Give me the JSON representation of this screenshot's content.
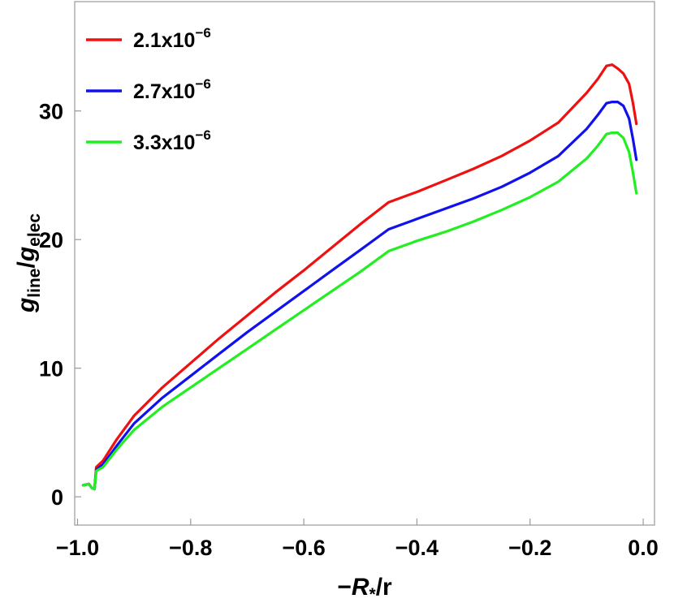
{
  "chart_data": {
    "type": "line",
    "xlabel_prefix": "−",
    "xlabel_main": "R",
    "xlabel_sub": "*",
    "xlabel_suffix": "/r",
    "ylabel_main1": "g",
    "ylabel_sub1": "line",
    "ylabel_sep": "/",
    "ylabel_main2": "g",
    "ylabel_sub2": "elec",
    "xlim": [
      -1.005,
      0.02
    ],
    "ylim": [
      -2.2,
      38.5
    ],
    "x_ticks": [
      {
        "value": -1.0,
        "label": "−1.0"
      },
      {
        "value": -0.8,
        "label": "−0.8"
      },
      {
        "value": -0.6,
        "label": "−0.6"
      },
      {
        "value": -0.4,
        "label": "−0.4"
      },
      {
        "value": -0.2,
        "label": "−0.2"
      },
      {
        "value": 0.0,
        "label": "0.0"
      }
    ],
    "y_ticks": [
      {
        "value": 0,
        "label": "0"
      },
      {
        "value": 10,
        "label": "10"
      },
      {
        "value": 20,
        "label": "20"
      },
      {
        "value": 30,
        "label": "30"
      }
    ],
    "legend_position": "top-left",
    "series": [
      {
        "legend_base": "2.1x10",
        "legend_exp": "−6",
        "color": "#ee1111",
        "points": [
          [
            -0.99,
            0.9
          ],
          [
            -0.98,
            1.0
          ],
          [
            -0.975,
            0.7
          ],
          [
            -0.97,
            0.6
          ],
          [
            -0.967,
            2.3
          ],
          [
            -0.955,
            2.8
          ],
          [
            -0.93,
            4.5
          ],
          [
            -0.9,
            6.3
          ],
          [
            -0.85,
            8.5
          ],
          [
            -0.8,
            10.4
          ],
          [
            -0.75,
            12.3
          ],
          [
            -0.7,
            14.1
          ],
          [
            -0.65,
            15.9
          ],
          [
            -0.6,
            17.6
          ],
          [
            -0.55,
            19.4
          ],
          [
            -0.5,
            21.2
          ],
          [
            -0.45,
            22.9
          ],
          [
            -0.4,
            23.7
          ],
          [
            -0.35,
            24.6
          ],
          [
            -0.3,
            25.5
          ],
          [
            -0.25,
            26.5
          ],
          [
            -0.2,
            27.7
          ],
          [
            -0.15,
            29.1
          ],
          [
            -0.1,
            31.4
          ],
          [
            -0.08,
            32.5
          ],
          [
            -0.065,
            33.5
          ],
          [
            -0.055,
            33.6
          ],
          [
            -0.045,
            33.3
          ],
          [
            -0.035,
            32.9
          ],
          [
            -0.025,
            32.1
          ],
          [
            -0.018,
            30.6
          ],
          [
            -0.012,
            29.0
          ]
        ]
      },
      {
        "legend_base": "2.7x10",
        "legend_exp": "−6",
        "color": "#1111ee",
        "points": [
          [
            -0.99,
            0.9
          ],
          [
            -0.98,
            1.0
          ],
          [
            -0.975,
            0.7
          ],
          [
            -0.97,
            0.6
          ],
          [
            -0.967,
            2.1
          ],
          [
            -0.955,
            2.5
          ],
          [
            -0.93,
            4.0
          ],
          [
            -0.9,
            5.7
          ],
          [
            -0.85,
            7.7
          ],
          [
            -0.8,
            9.4
          ],
          [
            -0.75,
            11.1
          ],
          [
            -0.7,
            12.8
          ],
          [
            -0.65,
            14.4
          ],
          [
            -0.6,
            16.0
          ],
          [
            -0.55,
            17.6
          ],
          [
            -0.5,
            19.2
          ],
          [
            -0.45,
            20.8
          ],
          [
            -0.4,
            21.6
          ],
          [
            -0.35,
            22.4
          ],
          [
            -0.3,
            23.2
          ],
          [
            -0.25,
            24.1
          ],
          [
            -0.2,
            25.2
          ],
          [
            -0.15,
            26.5
          ],
          [
            -0.1,
            28.6
          ],
          [
            -0.08,
            29.7
          ],
          [
            -0.065,
            30.6
          ],
          [
            -0.055,
            30.7
          ],
          [
            -0.045,
            30.7
          ],
          [
            -0.035,
            30.4
          ],
          [
            -0.025,
            29.4
          ],
          [
            -0.018,
            27.8
          ],
          [
            -0.012,
            26.2
          ]
        ]
      },
      {
        "legend_base": "3.3x10",
        "legend_exp": "−6",
        "color": "#22ee22",
        "points": [
          [
            -0.99,
            0.9
          ],
          [
            -0.98,
            1.0
          ],
          [
            -0.975,
            0.7
          ],
          [
            -0.97,
            0.6
          ],
          [
            -0.967,
            2.0
          ],
          [
            -0.955,
            2.3
          ],
          [
            -0.93,
            3.7
          ],
          [
            -0.9,
            5.2
          ],
          [
            -0.85,
            7.0
          ],
          [
            -0.8,
            8.5
          ],
          [
            -0.75,
            10.0
          ],
          [
            -0.7,
            11.5
          ],
          [
            -0.65,
            13.0
          ],
          [
            -0.6,
            14.5
          ],
          [
            -0.55,
            16.0
          ],
          [
            -0.5,
            17.5
          ],
          [
            -0.45,
            19.1
          ],
          [
            -0.4,
            19.9
          ],
          [
            -0.35,
            20.6
          ],
          [
            -0.3,
            21.4
          ],
          [
            -0.25,
            22.3
          ],
          [
            -0.2,
            23.3
          ],
          [
            -0.15,
            24.5
          ],
          [
            -0.1,
            26.3
          ],
          [
            -0.08,
            27.3
          ],
          [
            -0.065,
            28.2
          ],
          [
            -0.055,
            28.3
          ],
          [
            -0.045,
            28.3
          ],
          [
            -0.035,
            27.9
          ],
          [
            -0.025,
            26.8
          ],
          [
            -0.018,
            25.2
          ],
          [
            -0.012,
            23.6
          ]
        ]
      }
    ]
  }
}
